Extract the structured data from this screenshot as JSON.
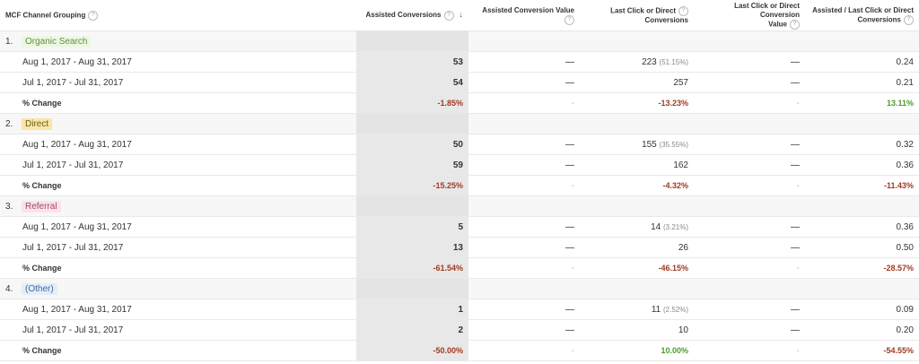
{
  "headers": {
    "grouping": "MCF Channel Grouping",
    "assisted_conversions": "Assisted Conversions",
    "assisted_conversion_value": "Assisted Conversion Value",
    "last_click_line1": "Last Click or Direct",
    "last_click_line2": "Conversions",
    "last_click_value_line1": "Last Click or Direct Conversion",
    "last_click_value_line2": "Value",
    "ratio_line1": "Assisted / Last Click or Direct",
    "ratio_line2": "Conversions",
    "help_glyph": "?",
    "sort_glyph": "↓"
  },
  "colors": {
    "organic": "#eef7e4",
    "organic_text": "#5f8f3a",
    "direct": "#f9e6a8",
    "direct_text": "#6b5a1a",
    "referral": "#fbe3ea",
    "referral_text": "#a5475f",
    "other": "#e4eef9",
    "other_text": "#3b6a9c"
  },
  "groups": [
    {
      "index": "1.",
      "name": "Organic Search",
      "rows": [
        {
          "label": "Aug 1, 2017 - Aug 31, 2017",
          "assisted": "53",
          "assisted_value": "—",
          "last_click": "223",
          "last_click_pct": "(51.15%)",
          "last_click_value": "—",
          "ratio": "0.24"
        },
        {
          "label": "Jul 1, 2017 - Jul 31, 2017",
          "assisted": "54",
          "assisted_value": "—",
          "last_click": "257",
          "last_click_pct": "",
          "last_click_value": "—",
          "ratio": "0.21"
        }
      ],
      "change": {
        "label": "% Change",
        "assisted": "-1.85%",
        "assisted_value": "-",
        "last_click": "-13.23%",
        "last_click_value": "-",
        "ratio": "13.11%"
      }
    },
    {
      "index": "2.",
      "name": "Direct",
      "rows": [
        {
          "label": "Aug 1, 2017 - Aug 31, 2017",
          "assisted": "50",
          "assisted_value": "—",
          "last_click": "155",
          "last_click_pct": "(35.55%)",
          "last_click_value": "—",
          "ratio": "0.32"
        },
        {
          "label": "Jul 1, 2017 - Jul 31, 2017",
          "assisted": "59",
          "assisted_value": "—",
          "last_click": "162",
          "last_click_pct": "",
          "last_click_value": "—",
          "ratio": "0.36"
        }
      ],
      "change": {
        "label": "% Change",
        "assisted": "-15.25%",
        "assisted_value": "-",
        "last_click": "-4.32%",
        "last_click_value": "-",
        "ratio": "-11.43%"
      }
    },
    {
      "index": "3.",
      "name": "Referral",
      "rows": [
        {
          "label": "Aug 1, 2017 - Aug 31, 2017",
          "assisted": "5",
          "assisted_value": "—",
          "last_click": "14",
          "last_click_pct": "(3.21%)",
          "last_click_value": "—",
          "ratio": "0.36"
        },
        {
          "label": "Jul 1, 2017 - Jul 31, 2017",
          "assisted": "13",
          "assisted_value": "—",
          "last_click": "26",
          "last_click_pct": "",
          "last_click_value": "—",
          "ratio": "0.50"
        }
      ],
      "change": {
        "label": "% Change",
        "assisted": "-61.54%",
        "assisted_value": "-",
        "last_click": "-46.15%",
        "last_click_value": "-",
        "ratio": "-28.57%"
      }
    },
    {
      "index": "4.",
      "name": "(Other)",
      "rows": [
        {
          "label": "Aug 1, 2017 - Aug 31, 2017",
          "assisted": "1",
          "assisted_value": "—",
          "last_click": "11",
          "last_click_pct": "(2.52%)",
          "last_click_value": "—",
          "ratio": "0.09"
        },
        {
          "label": "Jul 1, 2017 - Jul 31, 2017",
          "assisted": "2",
          "assisted_value": "—",
          "last_click": "10",
          "last_click_pct": "",
          "last_click_value": "—",
          "ratio": "0.20"
        }
      ],
      "change": {
        "label": "% Change",
        "assisted": "-50.00%",
        "assisted_value": "-",
        "last_click": "10.00%",
        "last_click_value": "-",
        "ratio": "-54.55%"
      }
    }
  ]
}
